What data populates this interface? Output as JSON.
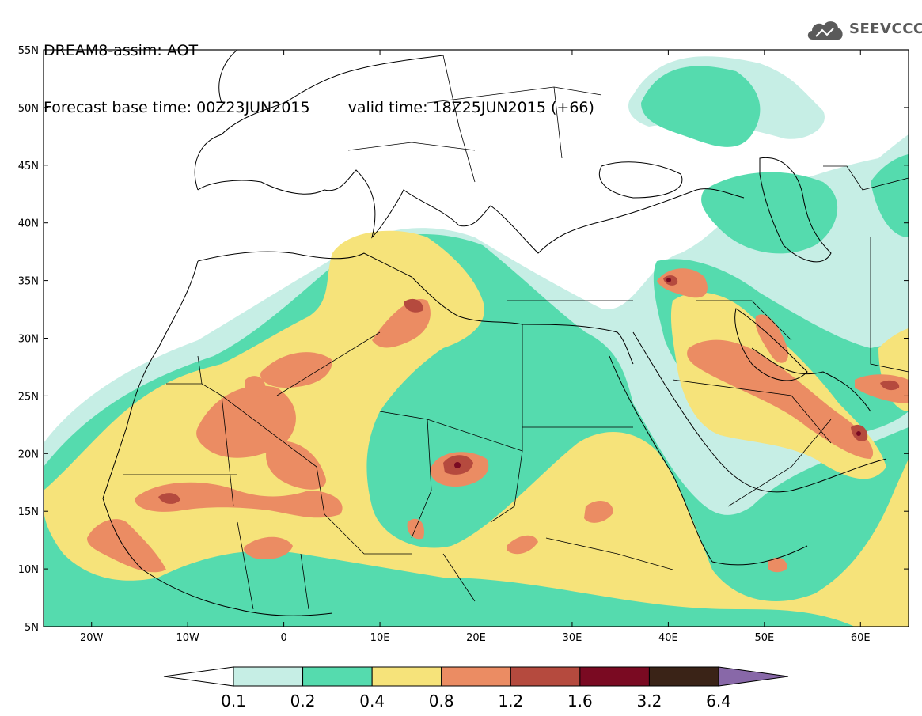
{
  "header": {
    "line1": "DREAM8-assim: AOT",
    "base_time": "Forecast base time: 00Z23JUN2015",
    "valid_time": "valid time: 18Z25JUN2015 (+66)"
  },
  "logo": {
    "text": "SEEVCCC",
    "icon": "cloud-icon",
    "color": "#5a5a5a"
  },
  "map": {
    "lon_range": [
      -25,
      65
    ],
    "lat_range": [
      5,
      55
    ],
    "lon_ticks": [
      {
        "value": -20,
        "label": "20W"
      },
      {
        "value": -10,
        "label": "10W"
      },
      {
        "value": 0,
        "label": "0"
      },
      {
        "value": 10,
        "label": "10E"
      },
      {
        "value": 20,
        "label": "20E"
      },
      {
        "value": 30,
        "label": "30E"
      },
      {
        "value": 40,
        "label": "40E"
      },
      {
        "value": 50,
        "label": "50E"
      },
      {
        "value": 60,
        "label": "60E"
      }
    ],
    "lat_ticks": [
      {
        "value": 55,
        "label": "55N"
      },
      {
        "value": 50,
        "label": "50N"
      },
      {
        "value": 45,
        "label": "45N"
      },
      {
        "value": 40,
        "label": "40N"
      },
      {
        "value": 35,
        "label": "35N"
      },
      {
        "value": 30,
        "label": "30N"
      },
      {
        "value": 25,
        "label": "25N"
      },
      {
        "value": 20,
        "label": "20N"
      },
      {
        "value": 15,
        "label": "15N"
      },
      {
        "value": 10,
        "label": "10N"
      },
      {
        "value": 5,
        "label": "5N"
      }
    ]
  },
  "colorbar": {
    "colors": [
      "#ffffff",
      "#c6eee5",
      "#55dbae",
      "#f6e37a",
      "#eb8c63",
      "#b54a3e",
      "#7a0a22",
      "#3a2317",
      "#8868a8"
    ],
    "labels": [
      "0.1",
      "0.2",
      "0.4",
      "0.8",
      "1.2",
      "1.6",
      "3.2",
      "6.4"
    ]
  }
}
